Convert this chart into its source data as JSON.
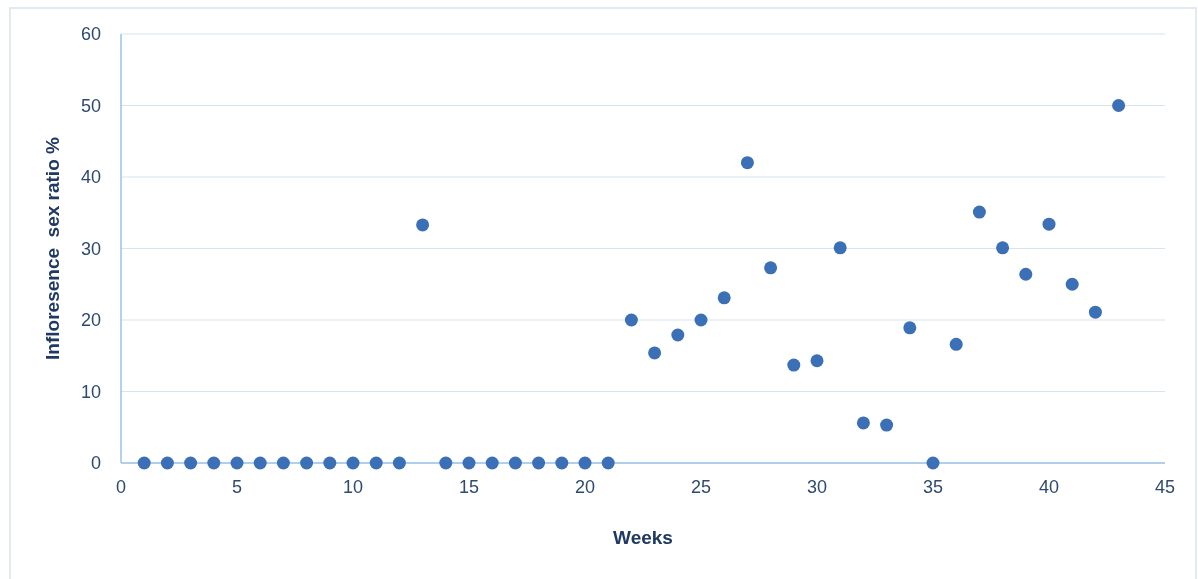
{
  "chart_data": {
    "type": "scatter",
    "xlabel": "Weeks",
    "ylabel": "Infloresence  sex ratio %",
    "x": [
      1,
      2,
      3,
      4,
      5,
      6,
      7,
      8,
      9,
      10,
      11,
      12,
      13,
      14,
      15,
      16,
      17,
      18,
      19,
      20,
      21,
      22,
      23,
      24,
      25,
      26,
      27,
      28,
      29,
      30,
      31,
      32,
      33,
      34,
      35,
      36,
      37,
      38,
      39,
      40,
      41,
      42,
      43
    ],
    "series": [
      {
        "color": "#3b6fb6",
        "values": [
          0,
          0,
          0,
          0,
          0,
          0,
          0,
          0,
          0,
          0,
          0,
          0,
          33.3,
          0,
          0,
          0,
          0,
          0,
          0,
          0,
          0,
          20,
          15.4,
          17.9,
          20,
          23.1,
          42,
          27.3,
          13.7,
          14.3,
          30.1,
          5.6,
          5.3,
          18.9,
          0,
          16.6,
          35.1,
          30.1,
          26.4,
          33.4,
          25,
          21.1,
          50
        ]
      }
    ],
    "xlim": [
      0,
      45
    ],
    "xticks": [
      0,
      5,
      10,
      15,
      20,
      25,
      30,
      35,
      40,
      45
    ],
    "ylim": [
      0,
      60
    ],
    "yticks": [
      0,
      10,
      20,
      30,
      40,
      50,
      60
    ],
    "grid": "y",
    "marker": "circle"
  }
}
